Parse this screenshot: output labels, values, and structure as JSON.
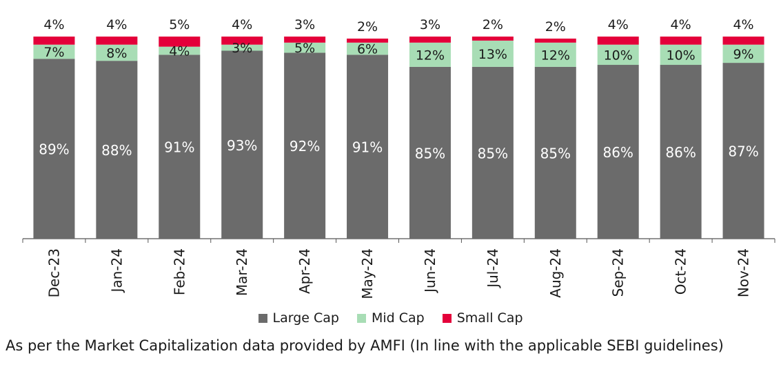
{
  "chart_data": {
    "type": "bar",
    "stacked": true,
    "categories": [
      "Dec-23",
      "Jan-24",
      "Feb-24",
      "Mar-24",
      "Apr-24",
      "May-24",
      "Jun-24",
      "Jul-24",
      "Aug-24",
      "Sep-24",
      "Oct-24",
      "Nov-24"
    ],
    "series": [
      {
        "name": "Large Cap",
        "color": "#6b6b6b",
        "values": [
          89,
          88,
          91,
          93,
          92,
          91,
          85,
          85,
          85,
          86,
          86,
          87
        ]
      },
      {
        "name": "Mid Cap",
        "color": "#a8ddb5",
        "values": [
          7,
          8,
          4,
          3,
          5,
          6,
          12,
          13,
          12,
          10,
          10,
          9
        ]
      },
      {
        "name": "Small Cap",
        "color": "#e4003a",
        "values": [
          4,
          4,
          5,
          4,
          3,
          2,
          3,
          2,
          2,
          4,
          4,
          4
        ]
      }
    ],
    "value_suffix": "%",
    "legend_position": "bottom",
    "grid": false
  },
  "legend": {
    "items": [
      {
        "label": "Large Cap",
        "color": "#6b6b6b"
      },
      {
        "label": "Mid Cap",
        "color": "#a8ddb5"
      },
      {
        "label": "Small Cap",
        "color": "#e4003a"
      }
    ]
  },
  "footnote": "As per the Market Capitalization data provided by AMFI (In line with the applicable SEBI guidelines)"
}
